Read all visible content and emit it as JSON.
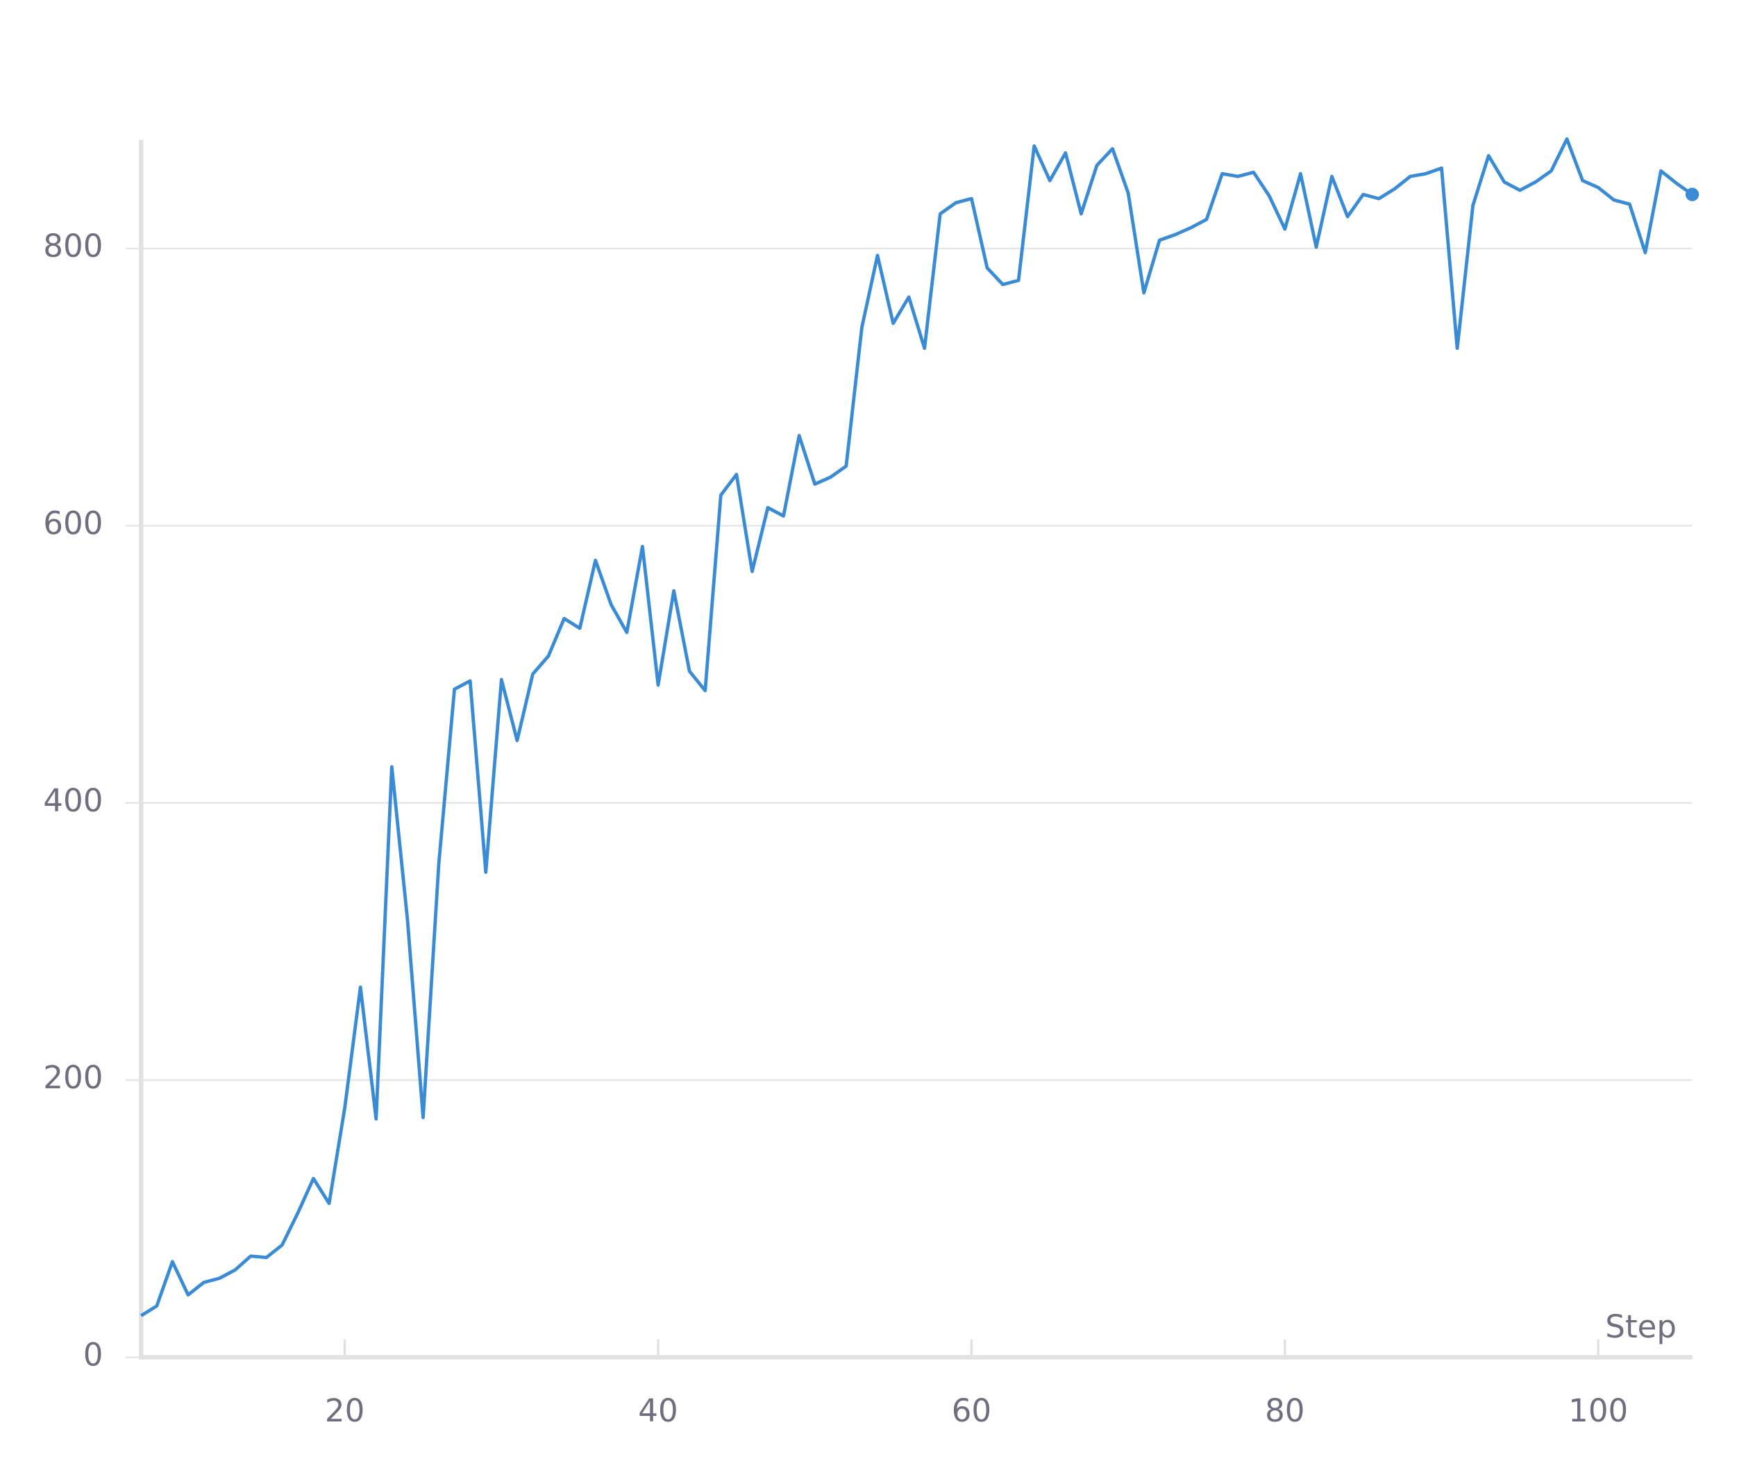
{
  "chart_data": {
    "type": "line",
    "x_label": "Step",
    "x": [
      7,
      8,
      9,
      10,
      11,
      12,
      13,
      14,
      15,
      16,
      17,
      18,
      19,
      20,
      21,
      22,
      23,
      24,
      25,
      26,
      27,
      28,
      29,
      30,
      31,
      32,
      33,
      34,
      35,
      36,
      37,
      38,
      39,
      40,
      41,
      42,
      43,
      44,
      45,
      46,
      47,
      48,
      49,
      50,
      51,
      52,
      53,
      54,
      55,
      56,
      57,
      58,
      59,
      60,
      61,
      62,
      63,
      64,
      65,
      66,
      67,
      68,
      69,
      70,
      71,
      72,
      73,
      74,
      75,
      76,
      77,
      78,
      79,
      80,
      81,
      82,
      83,
      84,
      85,
      86,
      87,
      88,
      89,
      90,
      91,
      92,
      93,
      94,
      95,
      96,
      97,
      98,
      99,
      100,
      101,
      102,
      103,
      104,
      105,
      106
    ],
    "series": [
      {
        "color": "#3a8bd6",
        "values": [
          30,
          37,
          69,
          45,
          54,
          57,
          63,
          73,
          72,
          81,
          104,
          129,
          111,
          180,
          267,
          172,
          426,
          316,
          173,
          356,
          482,
          488,
          350,
          489,
          445,
          493,
          506,
          533,
          526,
          575,
          543,
          523,
          585,
          485,
          553,
          495,
          481,
          622,
          637,
          567,
          613,
          607,
          665,
          630,
          635,
          643,
          743,
          795,
          746,
          765,
          728,
          825,
          833,
          836,
          786,
          774,
          777,
          874,
          849,
          869,
          825,
          860,
          872,
          840,
          768,
          806,
          810,
          815,
          821,
          854,
          852,
          855,
          838,
          814,
          854,
          801,
          852,
          823,
          839,
          836,
          843,
          852,
          854,
          858,
          728,
          831,
          867,
          848,
          842,
          848,
          856,
          879,
          849,
          844,
          835,
          832,
          797,
          856,
          847,
          839
        ]
      }
    ],
    "xlim": [
      7,
      106
    ],
    "xticks": [
      20,
      40,
      60,
      80,
      100
    ],
    "ylim": [
      0,
      880
    ],
    "yticks": [
      0,
      200,
      400,
      600,
      800
    ],
    "grid": true
  }
}
